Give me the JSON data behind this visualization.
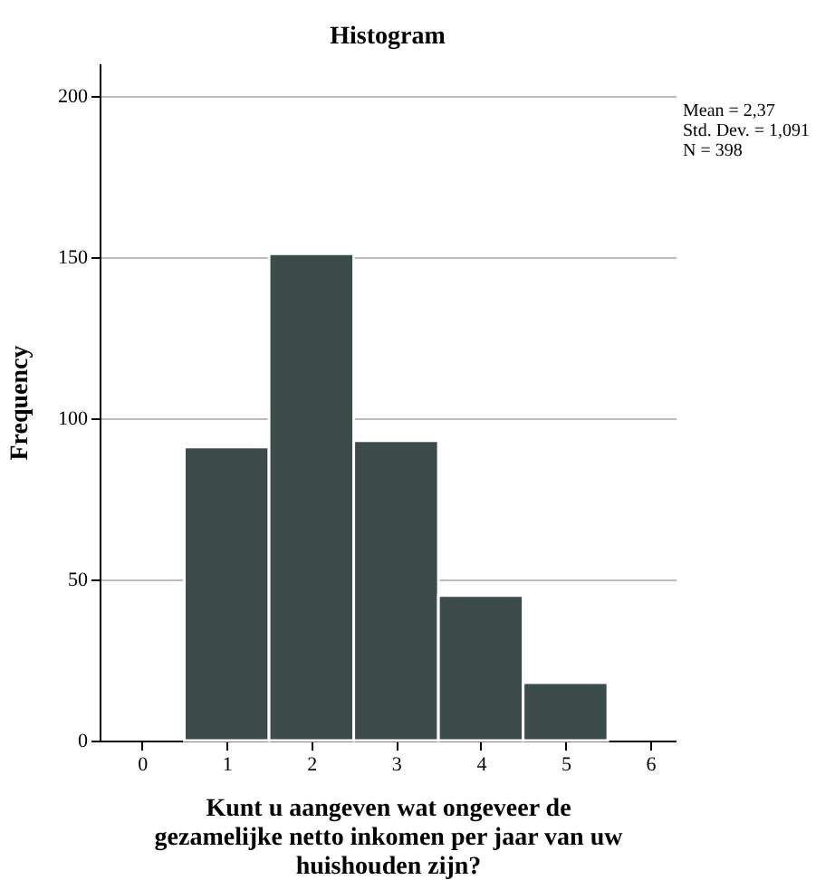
{
  "chart_data": {
    "type": "histogram",
    "title": "Histogram",
    "xlabel": "Kunt u aangeven wat ongeveer de gezamelijke netto inkomen per jaar van uw huishouden zijn?",
    "ylabel": "Frequency",
    "bins": [
      0.5,
      1.5,
      2.5,
      3.5,
      4.5,
      5.5
    ],
    "values": [
      91,
      151,
      93,
      45,
      18
    ],
    "color": "#3b4c4b",
    "xlim": [
      -0.5,
      6.3
    ],
    "xticks": [
      0,
      1,
      2,
      3,
      4,
      5,
      6
    ],
    "ylim": [
      0,
      210
    ],
    "yticks": [
      0,
      50,
      100,
      150,
      200
    ],
    "grid": "y",
    "annotations": [
      "Mean = 2,37",
      "Std. Dev. = 1,091",
      "N = 398"
    ]
  }
}
